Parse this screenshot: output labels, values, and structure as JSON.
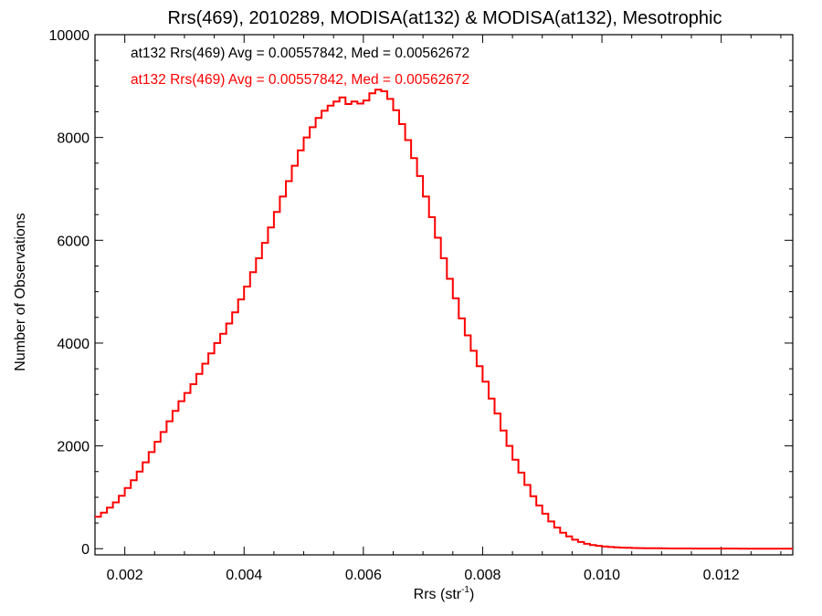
{
  "chart_data": {
    "type": "line",
    "title": "Rrs(469), 2010289, MODISA(at132) & MODISA(at132), Mesotrophic",
    "xlabel_base": "Rrs (str",
    "xlabel_sup": "-1",
    "xlabel_close": ")",
    "ylabel": "Number of Observations",
    "xlim": [
      0.0015,
      0.0132
    ],
    "ylim": [
      -120,
      10000
    ],
    "x_ticks": [
      0.002,
      0.004,
      0.006,
      0.008,
      0.01,
      0.012
    ],
    "x_tick_labels": [
      "0.002",
      "0.004",
      "0.006",
      "0.008",
      "0.010",
      "0.012"
    ],
    "y_ticks": [
      0,
      2000,
      4000,
      6000,
      8000,
      10000
    ],
    "y_tick_labels": [
      "0",
      "2000",
      "4000",
      "6000",
      "8000",
      "10000"
    ],
    "grid": false,
    "annotations": [
      {
        "text": "at132 Rrs(469) Avg = 0.00557842, Med = 0.00562672",
        "color": "#000000"
      },
      {
        "text": "at132 Rrs(469) Avg = 0.00557842, Med = 0.00562672",
        "color": "#ff0000"
      }
    ],
    "series": [
      {
        "color": "#ff0000",
        "x": [
          0.0015,
          0.0016,
          0.0017,
          0.0018,
          0.0019,
          0.002,
          0.0021,
          0.0022,
          0.0023,
          0.0024,
          0.0025,
          0.0026,
          0.0027,
          0.0028,
          0.0029,
          0.003,
          0.0031,
          0.0032,
          0.0033,
          0.0034,
          0.0035,
          0.0036,
          0.0037,
          0.0038,
          0.0039,
          0.004,
          0.0041,
          0.0042,
          0.0043,
          0.0044,
          0.0045,
          0.0046,
          0.0047,
          0.0048,
          0.0049,
          0.005,
          0.0051,
          0.0052,
          0.0053,
          0.0054,
          0.0055,
          0.0056,
          0.0057,
          0.0058,
          0.0059,
          0.006,
          0.0061,
          0.0062,
          0.0063,
          0.0064,
          0.0065,
          0.0066,
          0.0067,
          0.0068,
          0.0069,
          0.007,
          0.0071,
          0.0072,
          0.0073,
          0.0074,
          0.0075,
          0.0076,
          0.0077,
          0.0078,
          0.0079,
          0.008,
          0.0081,
          0.0082,
          0.0083,
          0.0084,
          0.0085,
          0.0086,
          0.0087,
          0.0088,
          0.0089,
          0.009,
          0.0091,
          0.0092,
          0.0093,
          0.0094,
          0.0095,
          0.0096,
          0.0097,
          0.0098,
          0.0099,
          0.01,
          0.0101,
          0.0102,
          0.0103,
          0.0104,
          0.0105,
          0.0106,
          0.0107,
          0.0108,
          0.0109,
          0.011,
          0.0111,
          0.0112,
          0.0113,
          0.0114,
          0.0115,
          0.0116,
          0.0117,
          0.0118,
          0.0119,
          0.012,
          0.0121,
          0.0122,
          0.0123,
          0.0124,
          0.0125,
          0.0126,
          0.0127,
          0.0128,
          0.0129,
          0.013,
          0.0131,
          0.0132
        ],
        "y": [
          620,
          700,
          800,
          900,
          1030,
          1180,
          1330,
          1500,
          1680,
          1880,
          2080,
          2270,
          2480,
          2680,
          2870,
          3030,
          3200,
          3400,
          3600,
          3800,
          4000,
          4180,
          4380,
          4600,
          4850,
          5100,
          5380,
          5650,
          5950,
          6250,
          6550,
          6850,
          7150,
          7450,
          7750,
          8000,
          8200,
          8380,
          8520,
          8620,
          8700,
          8780,
          8650,
          8700,
          8660,
          8720,
          8860,
          8930,
          8900,
          8750,
          8530,
          8260,
          7950,
          7600,
          7250,
          6850,
          6450,
          6050,
          5650,
          5250,
          4870,
          4480,
          4150,
          3850,
          3550,
          3250,
          2920,
          2630,
          2300,
          2000,
          1730,
          1480,
          1240,
          1020,
          840,
          680,
          530,
          410,
          310,
          240,
          175,
          130,
          95,
          70,
          55,
          42,
          32,
          26,
          20,
          16,
          13,
          11,
          9,
          8,
          7,
          6,
          5,
          5,
          4,
          4,
          3,
          3,
          3,
          2,
          2,
          2,
          2,
          2,
          1,
          1,
          1,
          1,
          1,
          1,
          1,
          1,
          1,
          1
        ]
      }
    ]
  }
}
